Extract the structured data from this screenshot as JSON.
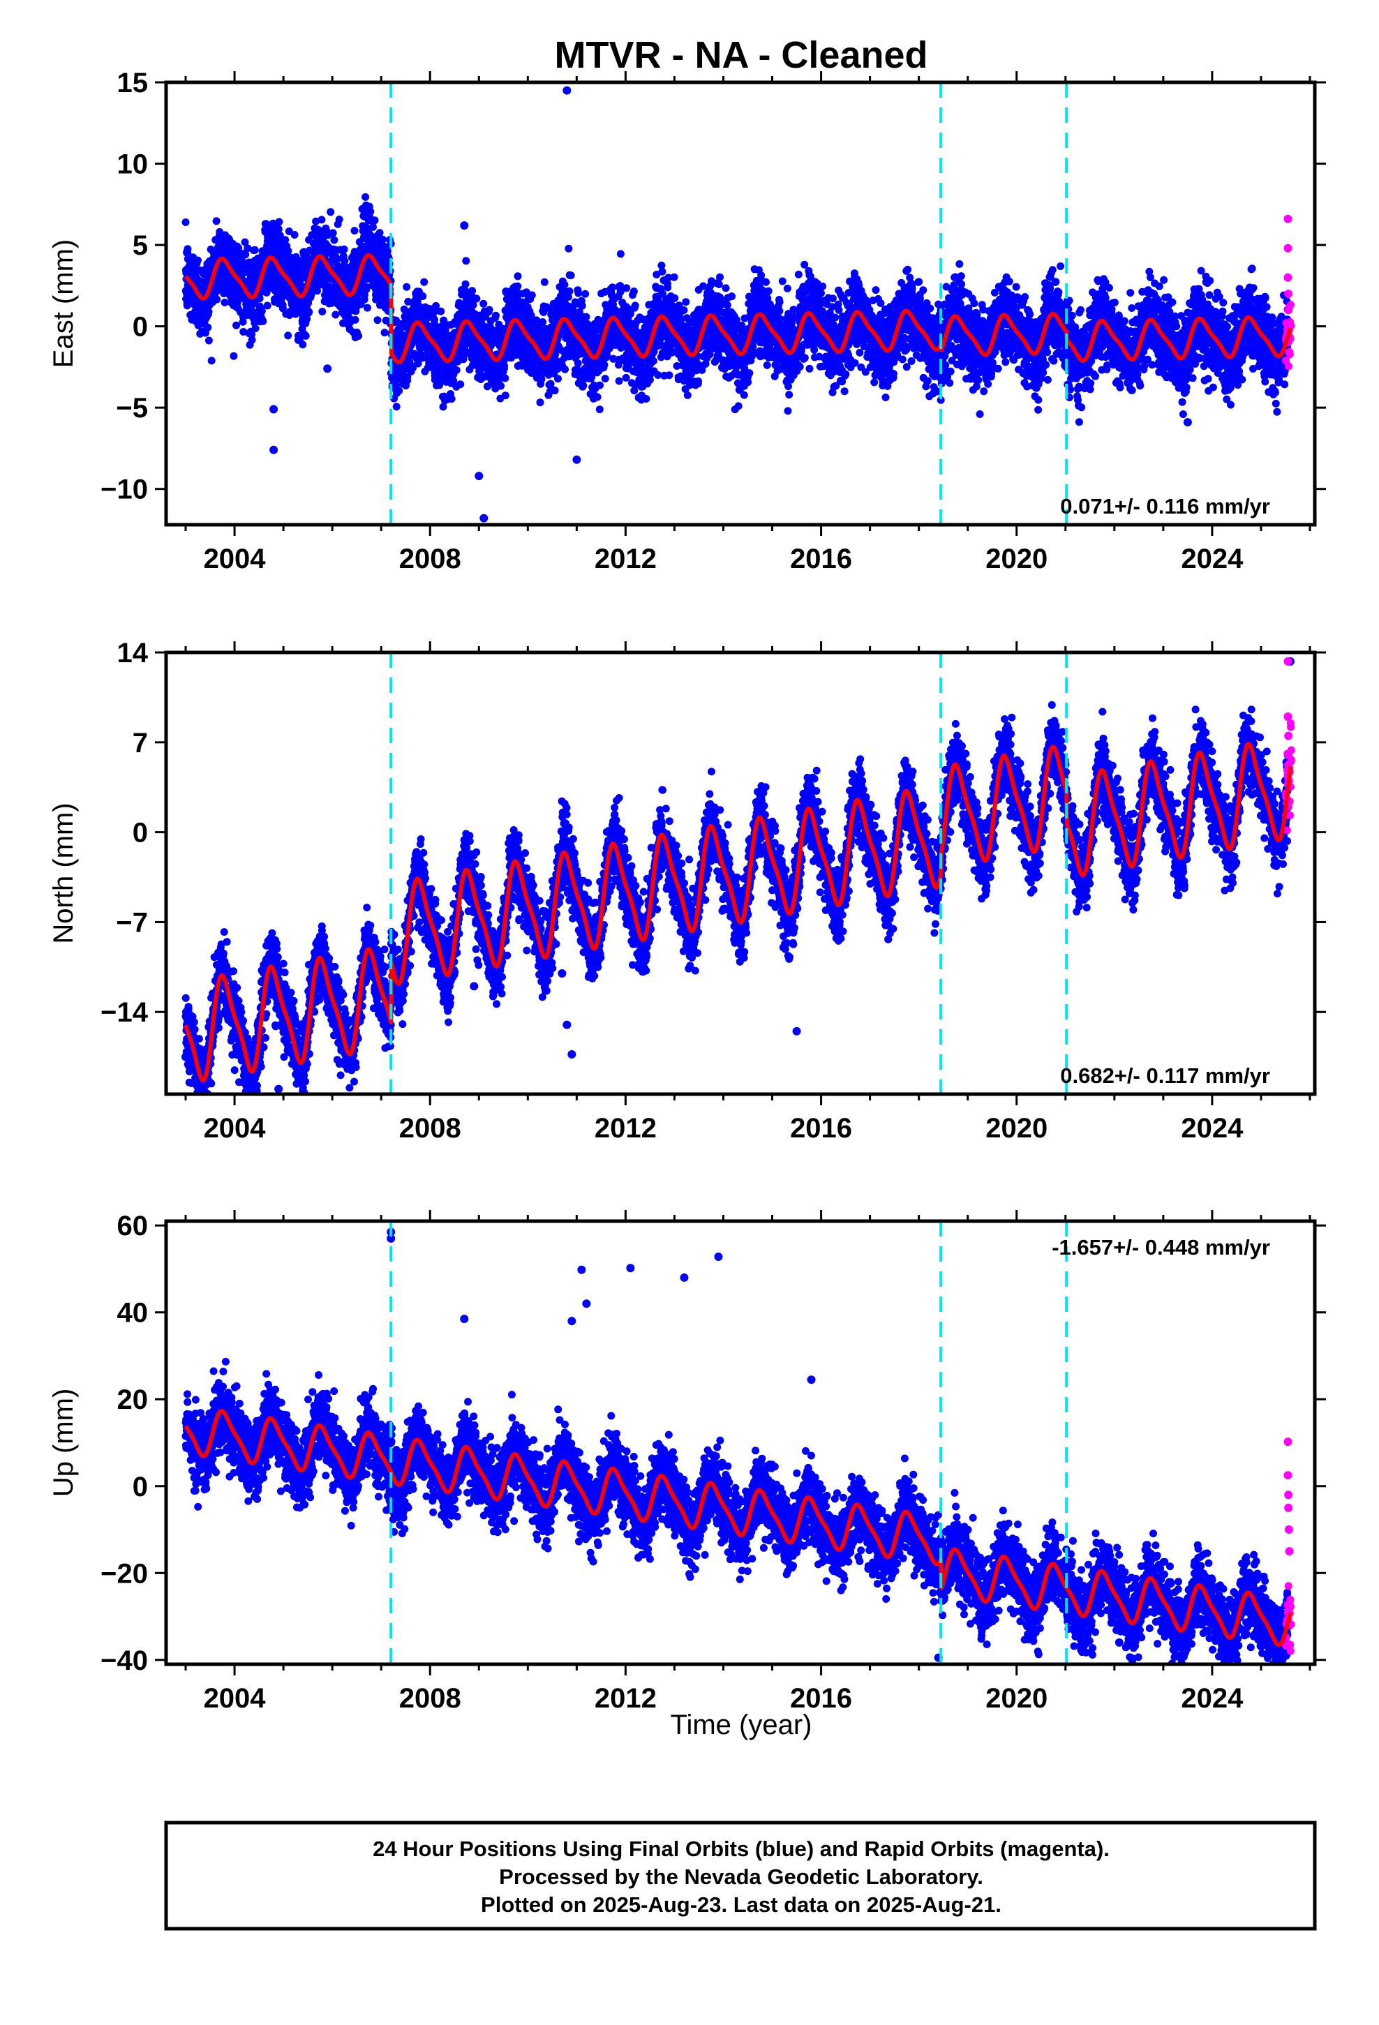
{
  "title": "MTVR  - NA - Cleaned",
  "xlabel": "Time (year)",
  "footer": {
    "line1": "24 Hour Positions Using Final Orbits (blue) and Rapid Orbits (magenta).",
    "line2": "Processed by the Nevada Geodetic Laboratory.",
    "line3": "Plotted on 2025-Aug-23. Last data on 2025-Aug-21."
  },
  "colors": {
    "final_orbits": "#0000ff",
    "rapid_orbits": "#ff00ff",
    "model_fit": "#ff0000",
    "equipment_change": "#00e5ee",
    "frame": "#000000"
  },
  "chart_data": [
    {
      "type": "scatter",
      "component": "East",
      "ylabel": "East (mm)",
      "ylim": [
        -12.2,
        15
      ],
      "yticks": [
        -10,
        -5,
        0,
        5,
        10,
        15
      ],
      "xlim": [
        2002.6,
        2026.1
      ],
      "xticks": [
        2004,
        2008,
        2012,
        2016,
        2020,
        2024
      ],
      "rate_label": "0.071+/- 0.116 mm/yr",
      "rate_position": "bottom-right",
      "breaks": [
        2007.2,
        2018.45,
        2021.02
      ],
      "model": {
        "pre_offset": 3.6,
        "post_offset": -0.6,
        "offset_break": 2007.2,
        "trend": 0.071,
        "t0": 2013.0,
        "annual_amp": 1.1,
        "annual_phase": 0.55,
        "secondary_offsets": [
          [
            2018.45,
            -0.4
          ],
          [
            2021.02,
            -0.5
          ]
        ]
      },
      "scatter_sigma": 1.2,
      "outliers": [
        [
          2010.8,
          14.5
        ],
        [
          2004.8,
          -7.6
        ],
        [
          2004.8,
          -5.1
        ],
        [
          2009.1,
          -11.8
        ],
        [
          2009.0,
          -9.2
        ],
        [
          2011.0,
          -8.2
        ],
        [
          2008.7,
          6.2
        ],
        [
          2005.9,
          -2.6
        ],
        [
          2023.5,
          -5.9
        ]
      ],
      "rapid_points": [
        [
          2025.55,
          6.6
        ],
        [
          2025.55,
          4.8
        ],
        [
          2025.55,
          3.0
        ],
        [
          2025.56,
          2.0
        ],
        [
          2025.56,
          1.0
        ],
        [
          2025.57,
          0.0
        ],
        [
          2025.58,
          -1.6
        ]
      ]
    },
    {
      "type": "scatter",
      "component": "North",
      "ylabel": "North (mm)",
      "ylim": [
        -20.4,
        14
      ],
      "yticks": [
        -14,
        -7,
        0,
        7,
        14
      ],
      "xlim": [
        2002.6,
        2026.1
      ],
      "xticks": [
        2004,
        2008,
        2012,
        2016,
        2020,
        2024
      ],
      "rate_label": "0.682+/- 0.117 mm/yr",
      "rate_position": "bottom-right",
      "breaks": [
        2007.2,
        2018.45,
        2021.02
      ],
      "model": {
        "pre_offset": -8.8,
        "post_offset": -4.0,
        "offset_break": 2007.2,
        "trend": 0.682,
        "t0": 2013.0,
        "annual_amp": 3.6,
        "annual_phase": 0.55,
        "secondary_offsets": [
          [
            2018.45,
            1.4
          ],
          [
            2021.02,
            -2.5
          ]
        ]
      },
      "scatter_sigma": 1.4,
      "outliers": [
        [
          2003.0,
          -17.5
        ],
        [
          2004.9,
          -20.0
        ],
        [
          2015.5,
          -15.5
        ],
        [
          2008.9,
          -12.0
        ],
        [
          2010.8,
          -15.0
        ],
        [
          2010.9,
          -17.3
        ],
        [
          2010.7,
          -11.0
        ],
        [
          2025.6,
          13.3
        ]
      ],
      "rapid_points": [
        [
          2025.55,
          13.3
        ],
        [
          2025.55,
          9.0
        ],
        [
          2025.56,
          7.5
        ],
        [
          2025.56,
          6.0
        ],
        [
          2025.57,
          4.0
        ],
        [
          2025.58,
          2.4
        ]
      ]
    },
    {
      "type": "scatter",
      "component": "Up",
      "ylabel": "Up (mm)",
      "ylim": [
        -41,
        61
      ],
      "yticks": [
        -40,
        -20,
        0,
        20,
        40,
        60
      ],
      "xlim": [
        2002.6,
        2026.1
      ],
      "xticks": [
        2004,
        2008,
        2012,
        2016,
        2020,
        2024
      ],
      "rate_label": "-1.657+/- 0.448 mm/yr",
      "rate_position": "top-right",
      "breaks": [
        2007.2,
        2018.45,
        2021.02
      ],
      "model": {
        "pre_offset": 13.0,
        "post_offset": 13.0,
        "offset_break": 2007.2,
        "trend": -1.657,
        "t0": 2003.0,
        "annual_amp": 5.0,
        "annual_phase": 0.55,
        "secondary_offsets": [
          [
            2018.45,
            -7.0
          ],
          [
            2021.02,
            0.0
          ]
        ]
      },
      "scatter_sigma": 4.2,
      "outliers": [
        [
          2007.2,
          58.5
        ],
        [
          2007.2,
          57.0
        ],
        [
          2013.9,
          52.8
        ],
        [
          2012.1,
          50.2
        ],
        [
          2011.1,
          49.8
        ],
        [
          2013.2,
          48.0
        ],
        [
          2011.2,
          42.0
        ],
        [
          2018.4,
          -39.5
        ],
        [
          2015.8,
          24.5
        ],
        [
          2010.9,
          38.0
        ],
        [
          2008.7,
          38.5
        ],
        [
          2022.1,
          -36.0
        ]
      ],
      "rapid_points": [
        [
          2025.55,
          10.2
        ],
        [
          2025.55,
          2.5
        ],
        [
          2025.56,
          -2.0
        ],
        [
          2025.56,
          -5.0
        ],
        [
          2025.57,
          -10.0
        ],
        [
          2025.58,
          -15.0
        ],
        [
          2025.59,
          -36.5
        ]
      ]
    }
  ]
}
